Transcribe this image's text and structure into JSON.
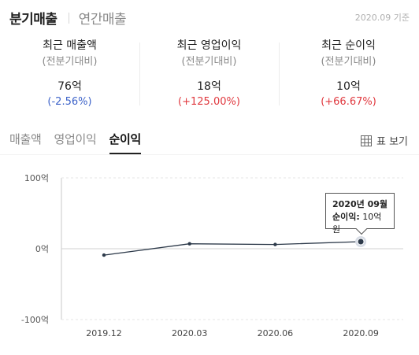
{
  "header": {
    "tabs": [
      {
        "label": "분기매출",
        "active": true
      },
      {
        "label": "연간매출",
        "active": false
      }
    ],
    "as_of": "2020.09 기준"
  },
  "summary": [
    {
      "title": "최근 매출액",
      "sub": "(전분기대비)",
      "value": "76억",
      "change": "(-2.56%)",
      "direction": "down"
    },
    {
      "title": "최근 영업이익",
      "sub": "(전분기대비)",
      "value": "18억",
      "change": "(+125.00%)",
      "direction": "up"
    },
    {
      "title": "최근 순이익",
      "sub": "(전분기대비)",
      "value": "10억",
      "change": "(+66.67%)",
      "direction": "up"
    }
  ],
  "subtabs": [
    {
      "label": "매출액",
      "active": false
    },
    {
      "label": "영업이익",
      "active": false
    },
    {
      "label": "순이익",
      "active": true
    }
  ],
  "table_view": {
    "label": "표 보기",
    "icon": "table-grid-icon"
  },
  "colors": {
    "line": "#2d3a4a",
    "down": "#3d63c9",
    "up": "#e0383e",
    "highlight": "#d8dde6"
  },
  "tooltip": {
    "date": "2020년 09월",
    "label": "순이익:",
    "value": "10억원"
  },
  "chart_data": {
    "type": "line",
    "categories": [
      "2019.12",
      "2020.03",
      "2020.06",
      "2020.09"
    ],
    "series": [
      {
        "values": [
          -9,
          7,
          6,
          10
        ]
      }
    ],
    "ylim": [
      -100,
      100
    ],
    "yticks": [
      100,
      0,
      -100
    ],
    "ytick_labels": [
      "100억",
      "0억",
      "-100억"
    ],
    "highlight_index": 3,
    "grid": true
  }
}
